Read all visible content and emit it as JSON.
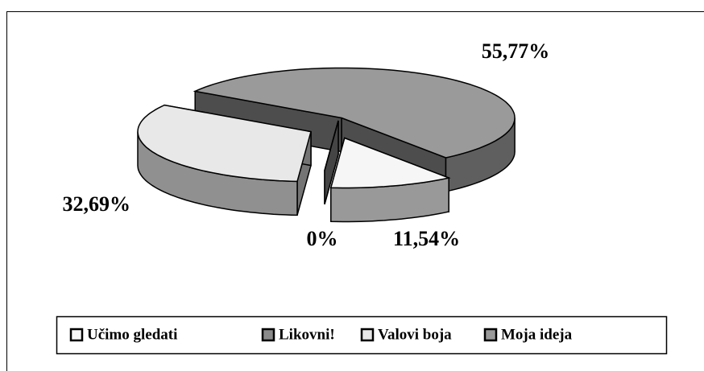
{
  "chart_data": {
    "type": "pie",
    "categories": [
      "Učimo gledati",
      "Likovni!",
      "Valovi boja",
      "Moja ideja"
    ],
    "values": [
      11.54,
      0,
      32.69,
      55.77
    ],
    "value_labels": [
      "11,54%",
      "0%",
      "32,69%",
      "55,77%"
    ],
    "colors": [
      "#f6f6f6",
      "#8a8a8a",
      "#e8e8e8",
      "#9a9a9a"
    ],
    "legend": "bottom"
  }
}
